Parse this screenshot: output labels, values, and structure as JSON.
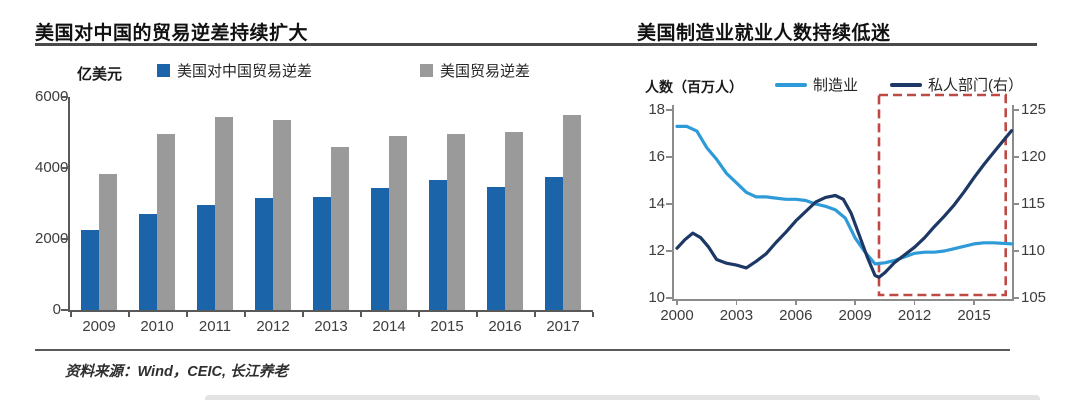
{
  "source_note": "资料来源：Wind，CEIC, 长江养老",
  "colors": {
    "bar_blue": "#1b64a9",
    "bar_gray": "#9a9a9a",
    "line_lightblue": "#2e9bd8",
    "line_navy": "#1d3865",
    "highlight_red": "#bf4a45",
    "axis_dark": "#595959",
    "axis_gray": "#8c8c8c"
  },
  "chart_data": [
    {
      "type": "bar",
      "title": "美国对中国的贸易逆差持续扩大",
      "unit": "亿美元",
      "categories": [
        "2009",
        "2010",
        "2011",
        "2012",
        "2013",
        "2014",
        "2015",
        "2016",
        "2017"
      ],
      "series": [
        {
          "name": "美国对中国贸易逆差",
          "color": "#1b64a9",
          "values": [
            2250,
            2700,
            2950,
            3150,
            3180,
            3430,
            3670,
            3470,
            3750
          ]
        },
        {
          "name": "美国贸易逆差",
          "color": "#9a9a9a",
          "values": [
            3830,
            4950,
            5450,
            5350,
            4600,
            4900,
            4970,
            5020,
            5500
          ]
        }
      ],
      "ylim": [
        0,
        6000
      ],
      "yticks": [
        0,
        2000,
        4000,
        6000
      ],
      "grid": false,
      "legend_position": "top"
    },
    {
      "type": "line",
      "title": "美国制造业就业人数持续低迷",
      "ylabel_left": "人数（百万人）",
      "xlim": [
        2000,
        2016.9
      ],
      "xticks": [
        2000,
        2003,
        2006,
        2009,
        2012,
        2015
      ],
      "ylim_left": [
        10,
        18
      ],
      "yticks_left": [
        10,
        12,
        14,
        16,
        18
      ],
      "ylim_right": [
        105,
        125
      ],
      "yticks_right": [
        105,
        110,
        115,
        120,
        125
      ],
      "grid": false,
      "legend_position": "top",
      "series": [
        {
          "name": "制造业",
          "axis": "left",
          "color": "#2e9bd8",
          "points": [
            [
              2000,
              17.3
            ],
            [
              2000.5,
              17.3
            ],
            [
              2001,
              17.1
            ],
            [
              2001.5,
              16.4
            ],
            [
              2002,
              15.9
            ],
            [
              2002.5,
              15.3
            ],
            [
              2003,
              14.9
            ],
            [
              2003.5,
              14.5
            ],
            [
              2004,
              14.3
            ],
            [
              2004.5,
              14.3
            ],
            [
              2005,
              14.25
            ],
            [
              2005.5,
              14.2
            ],
            [
              2006,
              14.2
            ],
            [
              2006.5,
              14.15
            ],
            [
              2007,
              14.0
            ],
            [
              2007.5,
              13.9
            ],
            [
              2008,
              13.75
            ],
            [
              2008.5,
              13.4
            ],
            [
              2009,
              12.55
            ],
            [
              2009.5,
              11.95
            ],
            [
              2010,
              11.45
            ],
            [
              2010.5,
              11.5
            ],
            [
              2011,
              11.6
            ],
            [
              2011.5,
              11.75
            ],
            [
              2012,
              11.9
            ],
            [
              2012.5,
              11.95
            ],
            [
              2013,
              11.95
            ],
            [
              2013.5,
              12.0
            ],
            [
              2014,
              12.1
            ],
            [
              2014.5,
              12.2
            ],
            [
              2015,
              12.3
            ],
            [
              2015.5,
              12.35
            ],
            [
              2016,
              12.35
            ],
            [
              2016.9,
              12.3
            ]
          ]
        },
        {
          "name": "私人部门(右）",
          "axis": "right",
          "color": "#1d3865",
          "points": [
            [
              2000,
              110.3
            ],
            [
              2000.4,
              111.2
            ],
            [
              2000.8,
              111.9
            ],
            [
              2001.2,
              111.4
            ],
            [
              2001.6,
              110.4
            ],
            [
              2002,
              109.1
            ],
            [
              2002.5,
              108.7
            ],
            [
              2003,
              108.5
            ],
            [
              2003.5,
              108.2
            ],
            [
              2004,
              108.9
            ],
            [
              2004.5,
              109.7
            ],
            [
              2005,
              110.9
            ],
            [
              2005.5,
              112.0
            ],
            [
              2006,
              113.2
            ],
            [
              2006.5,
              114.2
            ],
            [
              2007,
              115.2
            ],
            [
              2007.5,
              115.7
            ],
            [
              2008,
              115.9
            ],
            [
              2008.4,
              115.5
            ],
            [
              2008.8,
              114.0
            ],
            [
              2009.2,
              111.7
            ],
            [
              2009.6,
              109.4
            ],
            [
              2010,
              107.4
            ],
            [
              2010.2,
              107.2
            ],
            [
              2010.5,
              107.7
            ],
            [
              2011,
              108.8
            ],
            [
              2011.5,
              109.6
            ],
            [
              2012,
              110.4
            ],
            [
              2012.5,
              111.4
            ],
            [
              2013,
              112.6
            ],
            [
              2013.5,
              113.7
            ],
            [
              2014,
              114.9
            ],
            [
              2014.5,
              116.3
            ],
            [
              2015,
              117.8
            ],
            [
              2015.5,
              119.2
            ],
            [
              2016,
              120.5
            ],
            [
              2016.5,
              121.8
            ],
            [
              2016.9,
              122.8
            ]
          ]
        }
      ],
      "annotation_box": {
        "x0": 2010.2,
        "x1": 2016.6,
        "color": "#bf4a45",
        "style": "dashed"
      }
    }
  ]
}
